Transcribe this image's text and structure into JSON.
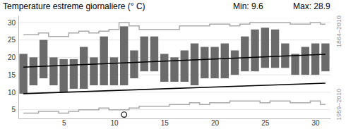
{
  "chart_data": {
    "type": "bar",
    "title": "Temperature estreme giornaliere (° C)",
    "annotations": [
      "Min: 9.6",
      "Max: 28.9"
    ],
    "x": [
      1,
      2,
      3,
      4,
      5,
      6,
      7,
      8,
      9,
      10,
      11,
      12,
      13,
      14,
      15,
      16,
      17,
      18,
      19,
      20,
      21,
      22,
      23,
      24,
      25,
      26,
      27,
      28,
      29,
      30,
      31
    ],
    "xlim": [
      0.5,
      31.5
    ],
    "xticks": [
      5,
      10,
      15,
      20,
      25,
      30
    ],
    "ylim": [
      2.5,
      32
    ],
    "yticks": [
      5,
      10,
      15,
      20,
      25,
      30
    ],
    "grid": true,
    "series": [
      {
        "type": "floating_bar",
        "color": "#6b6b6b",
        "low": [
          9.6,
          12,
          14,
          12,
          10,
          11,
          11,
          12,
          12,
          12,
          12,
          14,
          16,
          16,
          13,
          13,
          13,
          12,
          14,
          14,
          14,
          15,
          16,
          16,
          17,
          17,
          17,
          15,
          15,
          15,
          16
        ],
        "high": [
          21,
          20,
          25,
          20,
          19.5,
          19.5,
          23,
          20,
          26,
          20,
          28.9,
          22,
          26,
          26,
          21,
          20,
          22,
          24,
          23,
          23,
          24,
          22,
          26,
          28,
          28.5,
          28,
          24,
          21,
          23,
          24,
          24
        ]
      },
      {
        "type": "line",
        "color": "#000000",
        "x": [
          1,
          31
        ],
        "values": [
          17.2,
          20.9
        ]
      },
      {
        "type": "line",
        "color": "#000000",
        "x": [
          1,
          31
        ],
        "values": [
          9.6,
          12.6
        ]
      },
      {
        "type": "step",
        "name": "1864–2010",
        "color": "#aaaaaa",
        "values": [
          26.5,
          26.5,
          27,
          26,
          26,
          27,
          27.5,
          27,
          27.5,
          28,
          30,
          29,
          28,
          28,
          28,
          28,
          29,
          29,
          29,
          29.5,
          29.5,
          29,
          29.5,
          30,
          30,
          30,
          30,
          29.5,
          29.5,
          30,
          29.5
        ]
      },
      {
        "type": "step",
        "name": "1959–2010",
        "color": "#aaaaaa",
        "values": [
          4,
          4,
          4.5,
          4.5,
          4,
          4.5,
          5,
          5,
          5.5,
          5,
          5,
          5.5,
          6,
          6,
          6,
          6.5,
          6.5,
          7,
          6.5,
          7,
          7,
          7.5,
          7.5,
          7.5,
          7,
          7.5,
          7.5,
          7,
          7,
          7.5,
          6.5
        ]
      },
      {
        "type": "scatter",
        "marker": "circle",
        "color": "#000000",
        "x": [
          11
        ],
        "values": [
          3.6
        ]
      }
    ]
  }
}
